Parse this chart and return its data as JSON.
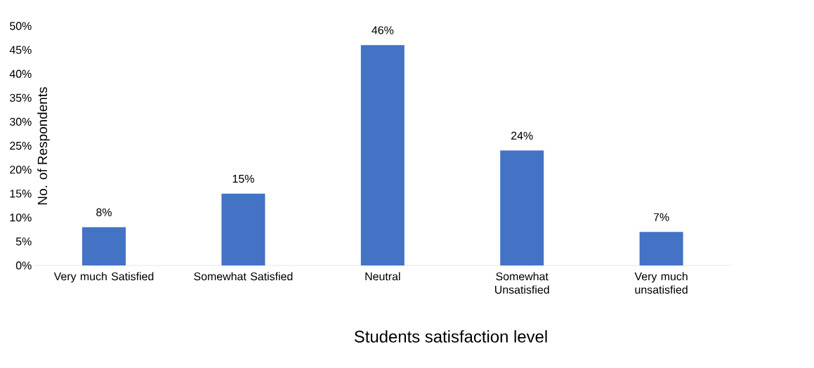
{
  "chart_data": {
    "type": "bar",
    "xlabel": "Students satisfaction level",
    "ylabel": "No. of Respondents",
    "categories": [
      "Very much Satisfied",
      "Somewhat Satisfied",
      "Neutral",
      "Somewhat Unsatisfied",
      "Very much unsatisfied"
    ],
    "values": [
      8,
      15,
      46,
      24,
      7
    ],
    "value_labels": [
      "8%",
      "15%",
      "46%",
      "24%",
      "7%"
    ],
    "color": "#4472c4",
    "ylim": [
      0,
      50
    ],
    "yticks": [
      {
        "value": 0,
        "label": "0%"
      },
      {
        "value": 5,
        "label": "5%"
      },
      {
        "value": 10,
        "label": "10%"
      },
      {
        "value": 15,
        "label": "15%"
      },
      {
        "value": 20,
        "label": "20%"
      },
      {
        "value": 25,
        "label": "25%"
      },
      {
        "value": 30,
        "label": "30%"
      },
      {
        "value": 35,
        "label": "35%"
      },
      {
        "value": 40,
        "label": "40%"
      },
      {
        "value": 45,
        "label": "45%"
      },
      {
        "value": 50,
        "label": "50%"
      }
    ],
    "grid": false
  }
}
